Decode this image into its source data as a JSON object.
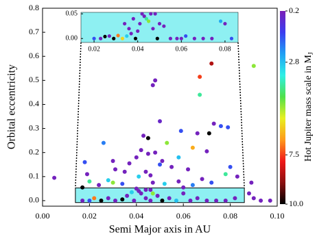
{
  "chart_data": [
    {
      "type": "scatter",
      "xlabel": "Semi Major axis in AU",
      "ylabel": "Orbital eccentricity",
      "colorbar_label": {
        "text": "Hot Jupiter mass scale in M",
        "sub": "J"
      },
      "xlim": [
        0,
        0.1
      ],
      "ylim": [
        -0.023,
        0.8
      ],
      "xticks": [
        {
          "value": 0,
          "label": "0.00"
        },
        {
          "value": 0.02,
          "label": "0.02"
        },
        {
          "value": 0.04,
          "label": "0.04"
        },
        {
          "value": 0.06,
          "label": "0.06"
        },
        {
          "value": 0.08,
          "label": "0.08"
        },
        {
          "value": 0.1,
          "label": "0.10"
        }
      ],
      "yticks": [
        {
          "value": 0,
          "label": "0.0"
        },
        0.1,
        0.2,
        0.3,
        0.4,
        0.5,
        0.6,
        0.7,
        0.8
      ],
      "clim": [
        0.2,
        10.0
      ],
      "cticks": [
        0.2,
        2.8,
        7.5,
        {
          "value": 10.0,
          "label": "10.0"
        }
      ],
      "colormap": [
        "#7a1fb8",
        "#3a3cf0",
        "#1fa0f5",
        "#2ef0e6",
        "#4fe04a",
        "#e8f020",
        "#ff9a1a",
        "#f01818",
        "#8a0f0f",
        "#000000"
      ],
      "zoom_fill": "#8ef0f2",
      "points": {
        "x": [
          0.005,
          0.048,
          0.047,
          0.072,
          0.067,
          0.09,
          0.067,
          0.05,
          0.073,
          0.076,
          0.079,
          0.045,
          0.043,
          0.059,
          0.066,
          0.071,
          0.053,
          0.026,
          0.042,
          0.048,
          0.045,
          0.051,
          0.04,
          0.064,
          0.07,
          0.058,
          0.018,
          0.03,
          0.037,
          0.05,
          0.055,
          0.062,
          0.08,
          0.078,
          0.031,
          0.035,
          0.044,
          0.041,
          0.046,
          0.019,
          0.02,
          0.028,
          0.03,
          0.024,
          0.034,
          0.047,
          0.052,
          0.058,
          0.064,
          0.068,
          0.072,
          0.083,
          0.089,
          0.017,
          0.04,
          0.046,
          0.06,
          0.09,
          0.093,
          0.097,
          0.088,
          0.017,
          0.02,
          0.022,
          0.025,
          0.028,
          0.031,
          0.034,
          0.036,
          0.039,
          0.042,
          0.044,
          0.046,
          0.049,
          0.051,
          0.054,
          0.057,
          0.06,
          0.063,
          0.066,
          0.07,
          0.074,
          0.078,
          0.082,
          0.041,
          0.044,
          0.038,
          0.047
        ],
        "y": [
          0.095,
          0.5,
          0.48,
          0.57,
          0.515,
          0.56,
          0.44,
          0.33,
          0.32,
          0.31,
          0.305,
          0.26,
          0.27,
          0.29,
          0.28,
          0.28,
          0.24,
          0.24,
          0.21,
          0.2,
          0.195,
          0.165,
          0.18,
          0.22,
          0.205,
          0.18,
          0.16,
          0.165,
          0.155,
          0.15,
          0.14,
          0.13,
          0.14,
          0.11,
          0.13,
          0.12,
          0.12,
          0.1,
          0.105,
          0.11,
          0.08,
          0.085,
          0.075,
          0.065,
          0.07,
          0.075,
          0.07,
          0.08,
          0.065,
          0.09,
          0.075,
          0.1,
          0.075,
          0.055,
          0.05,
          0.045,
          0.055,
          0.01,
          0.0,
          0.0,
          0.03,
          0.0,
          0.0,
          0.01,
          0.0,
          0.01,
          0.0,
          0.005,
          0.02,
          0.0,
          0.03,
          0.01,
          0.0,
          0.02,
          0.0,
          0.01,
          0.0,
          0.03,
          0.0,
          0.01,
          0.0,
          0.0,
          0.0,
          0.01,
          0.04,
          0.045,
          0.035,
          0.03
        ],
        "c": [
          0.3,
          0.3,
          0.3,
          8.5,
          7.5,
          5,
          4,
          0.5,
          0.3,
          1.5,
          1.5,
          10,
          0.3,
          1.5,
          0.3,
          10,
          5,
          2,
          0.3,
          0.3,
          0.3,
          0.3,
          0.3,
          6.5,
          0.3,
          2.8,
          1.5,
          0.3,
          0.3,
          1.5,
          0.3,
          0.3,
          1.5,
          4,
          0.3,
          0.3,
          0.3,
          3,
          0.3,
          0.3,
          4,
          3,
          5,
          0.3,
          1.5,
          0.3,
          3,
          0.3,
          2,
          0.3,
          1.5,
          0.3,
          0.3,
          10,
          0.3,
          0.3,
          0.3,
          0.3,
          0.3,
          0.3,
          0.3,
          0.3,
          1.5,
          7,
          10,
          0.3,
          0.3,
          10,
          0.3,
          0.3,
          0.3,
          0.3,
          0.3,
          0.3,
          10,
          0.3,
          2.8,
          0.3,
          0.3,
          0.3,
          0.3,
          0.3,
          0.3,
          0.3,
          0.3,
          0.3,
          3,
          5
        ]
      }
    },
    {
      "type": "scatter",
      "xlim": [
        0.014,
        0.086
      ],
      "ylim": [
        -0.008,
        0.053
      ],
      "xticks": [
        0.02,
        0.04,
        0.06,
        0.08
      ],
      "yticks": [
        {
          "value": 0,
          "label": "0.00"
        },
        0.05
      ],
      "background": "#8ef0f2",
      "points": {
        "x": [
          0.023,
          0.025,
          0.027,
          0.029,
          0.031,
          0.033,
          0.035,
          0.037,
          0.039,
          0.041,
          0.042,
          0.043,
          0.044,
          0.045,
          0.046,
          0.047,
          0.048,
          0.05,
          0.052,
          0.049,
          0.055,
          0.058,
          0.06,
          0.062,
          0.066,
          0.07,
          0.074,
          0.078,
          0.08,
          0.083,
          0.02,
          0.036,
          0.038,
          0.04,
          0.034
        ],
        "y": [
          0.0,
          0.004,
          0.005,
          0.0,
          0.006,
          0.0,
          0.005,
          0.01,
          0.0,
          0.03,
          0.05,
          0.045,
          0.04,
          0.035,
          0.05,
          0.02,
          0.05,
          0.03,
          0.025,
          0.0,
          0.0,
          0.0,
          0.0,
          0.005,
          0.0,
          0.0,
          0.0,
          0.035,
          0.03,
          0.0,
          0.0,
          0.02,
          0.04,
          0.015,
          0.03
        ],
        "c": [
          0.3,
          10,
          0.3,
          10,
          7,
          6,
          3,
          0.3,
          10,
          0.3,
          0.3,
          0.3,
          4,
          5,
          0.3,
          0.3,
          0.3,
          0.3,
          0.3,
          10,
          0.3,
          0.3,
          0.3,
          1.5,
          0.3,
          0.3,
          0.3,
          2.5,
          0.3,
          1.5,
          1.5,
          0.3,
          0.3,
          0.3,
          0.3
        ]
      }
    }
  ]
}
